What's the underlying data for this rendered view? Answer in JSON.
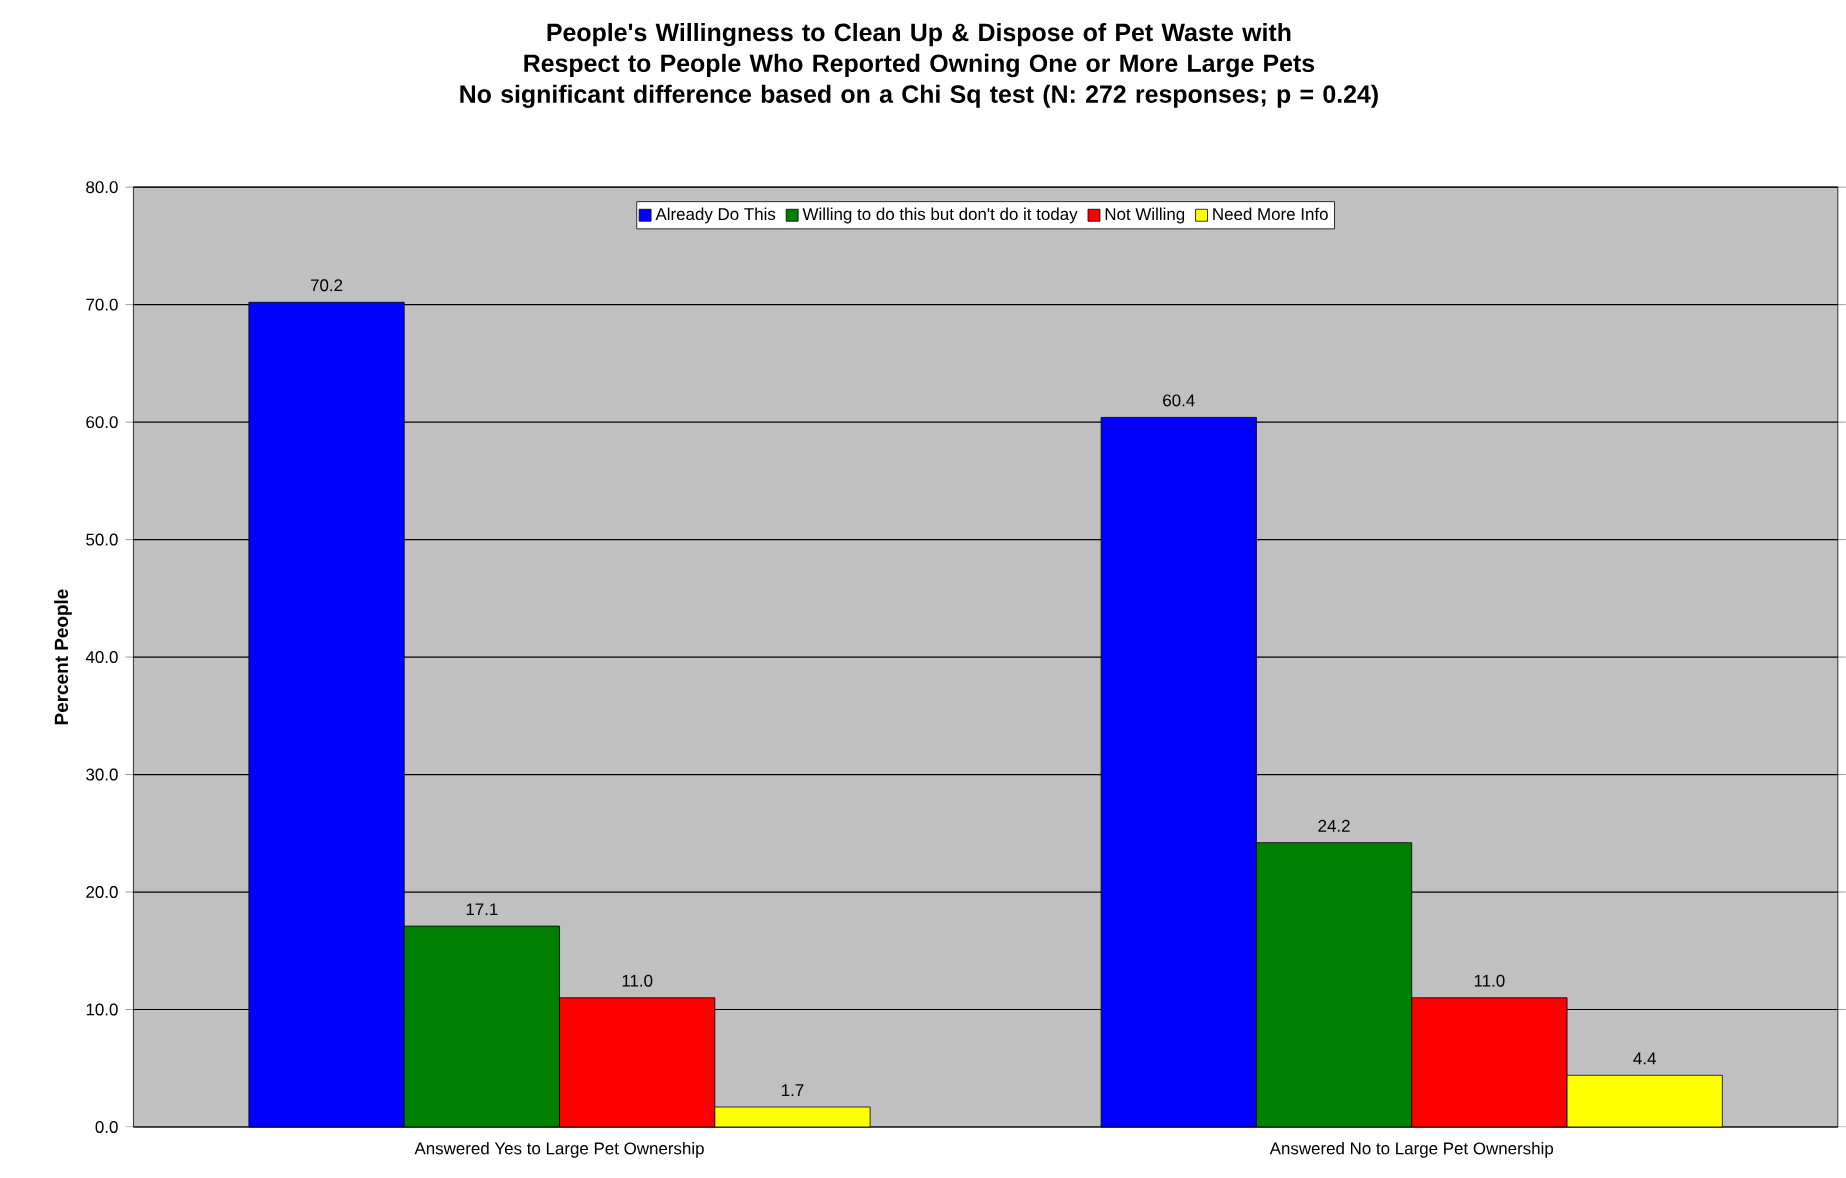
{
  "chart_data": {
    "type": "bar",
    "title": "People's Willingness to Clean Up & Dispose of Pet Waste with Respect to People Who Reported Owning One or More Large Pets",
    "subtitle": "No significant difference based on a Chi Sq test (N: 272 responses; p = 0.24)",
    "ylabel": "Percent People",
    "categories": [
      "Answered Yes to Large Pet Ownership",
      "Answered No to Large Pet Ownership"
    ],
    "series": [
      {
        "name": "Already Do This",
        "color": "#0000ff",
        "values": [
          70.2,
          60.4
        ],
        "value_labels": [
          "70.2",
          "60.4"
        ]
      },
      {
        "name": "Willing to do this but don't do it today",
        "color": "#008000",
        "values": [
          17.1,
          24.2
        ],
        "value_labels": [
          "17.1",
          "24.2"
        ]
      },
      {
        "name": "Not Willing",
        "color": "#ff0000",
        "values": [
          11.0,
          11.0
        ],
        "value_labels": [
          "11.0",
          "11.0"
        ]
      },
      {
        "name": "Need More Info",
        "color": "#ffff00",
        "values": [
          1.7,
          4.4
        ],
        "value_labels": [
          "1.7",
          "4.4"
        ]
      }
    ],
    "ylim": [
      0,
      80
    ],
    "yticks": [
      {
        "value": 0,
        "label": "0.0"
      },
      {
        "value": 10,
        "label": "10.0"
      },
      {
        "value": 20,
        "label": "20.0"
      },
      {
        "value": 30,
        "label": "30.0"
      },
      {
        "value": 40,
        "label": "40.0"
      },
      {
        "value": 50,
        "label": "50.0"
      },
      {
        "value": 60,
        "label": "60.0"
      },
      {
        "value": 70,
        "label": "70.0"
      },
      {
        "value": 80,
        "label": "80.0"
      }
    ],
    "grid": "y",
    "legend": "top"
  }
}
